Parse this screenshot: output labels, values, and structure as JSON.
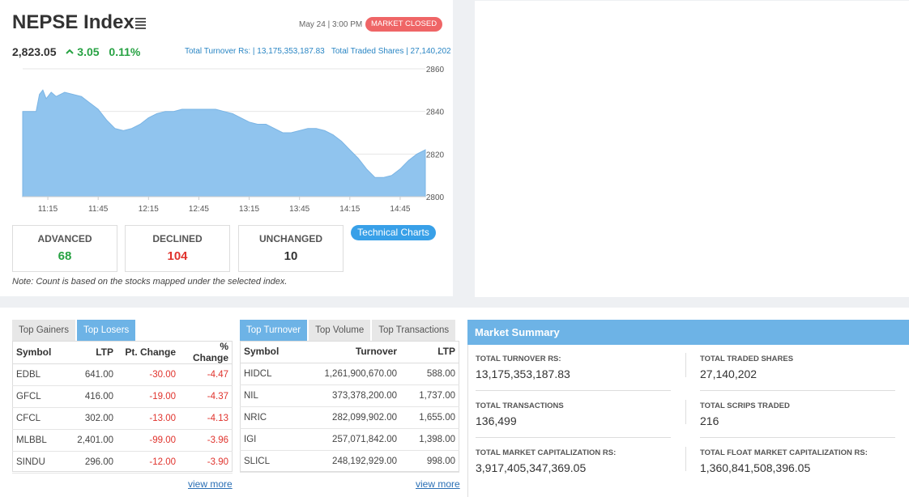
{
  "index": {
    "title": "NEPSE Index",
    "datetime": "May 24 | 3:00 PM",
    "market_status": "MARKET CLOSED",
    "value": "2,823.05",
    "change": "3.05",
    "percent_change": "0.11%",
    "total_turnover": "Total Turnover Rs: | 13,175,353,187.83",
    "total_traded_shares": "Total Traded Shares | 27,140,202",
    "status_color": "#ef6566",
    "up_color": "#27a243"
  },
  "chart_data": {
    "type": "area",
    "title": "",
    "xlabel": "",
    "ylabel": "",
    "ylim": [
      2800,
      2860
    ],
    "y_ticks": [
      "2860",
      "2840",
      "2820",
      "2800"
    ],
    "x_ticks": [
      "11:15",
      "11:45",
      "12:15",
      "12:45",
      "13:15",
      "13:45",
      "14:15",
      "14:45"
    ],
    "grid": true,
    "color": "#90c4ee",
    "series": [
      {
        "x": [
          "11:00",
          "11:05",
          "11:08",
          "11:10",
          "11:12",
          "11:14",
          "11:17",
          "11:20",
          "11:25",
          "11:30",
          "11:35",
          "11:40",
          "11:45",
          "11:50",
          "11:55",
          "12:00",
          "12:05",
          "12:10",
          "12:15",
          "12:20",
          "12:25",
          "12:30",
          "12:35",
          "12:40",
          "12:45",
          "12:50",
          "12:55",
          "13:00",
          "13:05",
          "13:10",
          "13:15",
          "13:20",
          "13:25",
          "13:30",
          "13:35",
          "13:40",
          "13:45",
          "13:50",
          "13:55",
          "14:00",
          "14:05",
          "14:10",
          "14:15",
          "14:20",
          "14:25",
          "14:30",
          "14:35",
          "14:40",
          "14:45",
          "14:50",
          "14:55",
          "15:00"
        ],
        "y": [
          2840,
          2840,
          2840,
          2848,
          2850,
          2846,
          2849,
          2847,
          2849,
          2848,
          2847,
          2844,
          2841,
          2836,
          2832,
          2831,
          2832,
          2834,
          2837,
          2839,
          2840,
          2840,
          2841,
          2841,
          2841,
          2841,
          2841,
          2840,
          2839,
          2837,
          2835,
          2834,
          2834,
          2832,
          2830,
          2830,
          2831,
          2832,
          2832,
          2831,
          2829,
          2826,
          2822,
          2818,
          2813,
          2809,
          2809,
          2810,
          2813,
          2817,
          2820,
          2822
        ]
      }
    ]
  },
  "counts": {
    "advanced_label": "ADVANCED",
    "advanced_value": "68",
    "declined_label": "DECLINED",
    "declined_value": "104",
    "unchanged_label": "UNCHANGED",
    "unchanged_value": "10",
    "advanced_color": "#27a243",
    "declined_color": "#e0332d"
  },
  "technical_charts_label": "Technical Charts",
  "note": "Note: Count is based on the stocks mapped under the selected index.",
  "losers": {
    "tabs": [
      "Top Gainers",
      "Top Losers"
    ],
    "active_tab": "Top Losers",
    "columns": [
      "Symbol",
      "LTP",
      "Pt. Change",
      "% Change"
    ],
    "rows": [
      [
        "EDBL",
        "641.00",
        "-30.00",
        "-4.47"
      ],
      [
        "GFCL",
        "416.00",
        "-19.00",
        "-4.37"
      ],
      [
        "CFCL",
        "302.00",
        "-13.00",
        "-4.13"
      ],
      [
        "MLBBL",
        "2,401.00",
        "-99.00",
        "-3.96"
      ],
      [
        "SINDU",
        "296.00",
        "-12.00",
        "-3.90"
      ]
    ],
    "view_more": "view more"
  },
  "turnover": {
    "tabs": [
      "Top Turnover",
      "Top Volume",
      "Top Transactions"
    ],
    "active_tab": "Top Turnover",
    "columns": [
      "Symbol",
      "Turnover",
      "LTP"
    ],
    "rows": [
      [
        "HIDCL",
        "1,261,900,670.00",
        "588.00"
      ],
      [
        "NIL",
        "373,378,200.00",
        "1,737.00"
      ],
      [
        "NRIC",
        "282,099,902.00",
        "1,655.00"
      ],
      [
        "IGI",
        "257,071,842.00",
        "1,398.00"
      ],
      [
        "SLICL",
        "248,192,929.00",
        "998.00"
      ]
    ],
    "view_more": "view more"
  },
  "market_summary": {
    "title": "Market Summary",
    "items": [
      {
        "label": "TOTAL TURNOVER RS:",
        "value": "13,175,353,187.83"
      },
      {
        "label": "TOTAL TRADED SHARES",
        "value": "27,140,202"
      },
      {
        "label": "TOTAL TRANSACTIONS",
        "value": "136,499"
      },
      {
        "label": "TOTAL SCRIPS TRADED",
        "value": "216"
      },
      {
        "label": "TOTAL MARKET CAPITALIZATION RS:",
        "value": "3,917,405,347,369.05"
      },
      {
        "label": "TOTAL FLOAT MARKET CAPITALIZATION RS:",
        "value": "1,360,841,508,396.05"
      }
    ]
  }
}
